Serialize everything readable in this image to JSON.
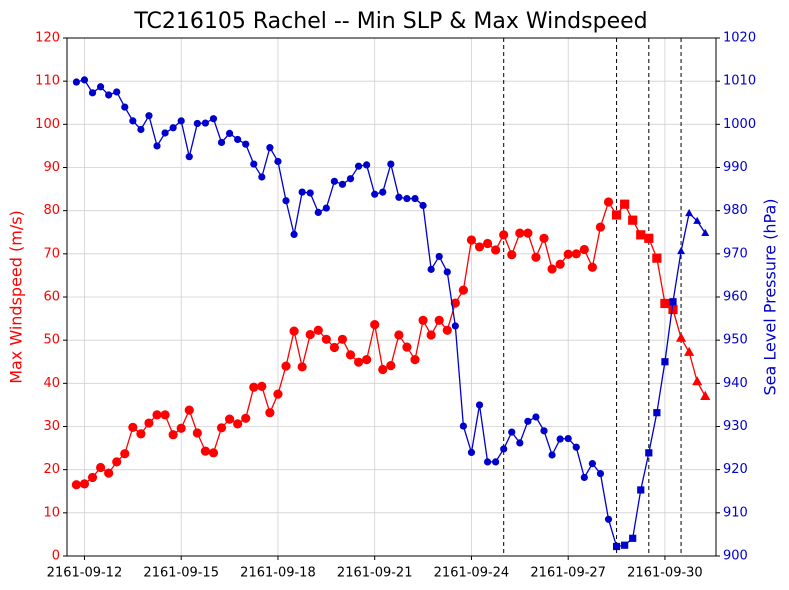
{
  "chart_data": {
    "type": "line",
    "title": "TC216105 Rachel -- Min SLP & Max Windspeed",
    "y_label": "Max Windspeed (m/s)",
    "y2_label": "Sea Level Pressure (hPa)",
    "x": [
      "2161-09-11 18:00",
      "2161-09-12 00:00",
      "2161-09-12 06:00",
      "2161-09-12 12:00",
      "2161-09-12 18:00",
      "2161-09-13 00:00",
      "2161-09-13 06:00",
      "2161-09-13 12:00",
      "2161-09-13 18:00",
      "2161-09-14 00:00",
      "2161-09-14 06:00",
      "2161-09-14 12:00",
      "2161-09-14 18:00",
      "2161-09-15 00:00",
      "2161-09-15 06:00",
      "2161-09-15 12:00",
      "2161-09-15 18:00",
      "2161-09-16 00:00",
      "2161-09-16 06:00",
      "2161-09-16 12:00",
      "2161-09-16 18:00",
      "2161-09-17 00:00",
      "2161-09-17 06:00",
      "2161-09-17 12:00",
      "2161-09-17 18:00",
      "2161-09-18 00:00",
      "2161-09-18 06:00",
      "2161-09-18 12:00",
      "2161-09-18 18:00",
      "2161-09-19 00:00",
      "2161-09-19 06:00",
      "2161-09-19 12:00",
      "2161-09-19 18:00",
      "2161-09-20 00:00",
      "2161-09-20 06:00",
      "2161-09-20 12:00",
      "2161-09-20 18:00",
      "2161-09-21 00:00",
      "2161-09-21 06:00",
      "2161-09-21 12:00",
      "2161-09-21 18:00",
      "2161-09-22 00:00",
      "2161-09-22 06:00",
      "2161-09-22 12:00",
      "2161-09-22 18:00",
      "2161-09-23 00:00",
      "2161-09-23 06:00",
      "2161-09-23 12:00",
      "2161-09-23 18:00",
      "2161-09-24 00:00",
      "2161-09-24 06:00",
      "2161-09-24 12:00",
      "2161-09-24 18:00",
      "2161-09-25 00:00",
      "2161-09-25 06:00",
      "2161-09-25 12:00",
      "2161-09-25 18:00",
      "2161-09-26 00:00",
      "2161-09-26 06:00",
      "2161-09-26 12:00",
      "2161-09-26 18:00",
      "2161-09-27 00:00",
      "2161-09-27 06:00",
      "2161-09-27 12:00",
      "2161-09-27 18:00",
      "2161-09-28 00:00",
      "2161-09-28 06:00",
      "2161-09-28 12:00",
      "2161-09-28 18:00",
      "2161-09-29 00:00",
      "2161-09-29 06:00",
      "2161-09-29 12:00",
      "2161-09-29 18:00",
      "2161-09-30 00:00",
      "2161-09-30 06:00",
      "2161-09-30 12:00",
      "2161-09-30 18:00",
      "2161-10-01 00:00",
      "2161-10-01 06:00"
    ],
    "series": [
      {
        "color": "#ff0000",
        "axis": "y",
        "values": [
          16.5,
          16.7,
          18.2,
          20.5,
          19.2,
          21.8,
          23.7,
          29.8,
          28.3,
          30.8,
          32.7,
          32.7,
          28.1,
          29.6,
          33.8,
          28.5,
          24.3,
          23.9,
          29.7,
          31.7,
          30.6,
          31.9,
          39.1,
          39.3,
          33.2,
          37.5,
          44.0,
          52.1,
          43.8,
          51.3,
          52.3,
          50.2,
          48.3,
          50.2,
          46.6,
          44.9,
          45.5,
          53.6,
          43.2,
          44.1,
          51.2,
          48.4,
          45.5,
          54.6,
          51.2,
          54.6,
          52.3,
          58.6,
          61.6,
          73.2,
          71.6,
          72.4,
          70.9,
          74.4,
          69.8,
          74.8,
          74.8,
          69.2,
          73.6,
          66.5,
          67.6,
          69.9,
          70.0,
          71.0,
          66.9,
          76.2,
          82.0,
          79.0,
          81.5,
          77.8,
          74.4,
          73.6,
          69.0,
          58.5,
          57.1,
          50.5,
          47.2,
          40.4,
          37.0
        ]
      },
      {
        "color": "#0000cc",
        "axis": "y2",
        "values": [
          1009.8,
          1010.3,
          1007.3,
          1008.7,
          1006.8,
          1007.5,
          1004.0,
          1000.8,
          998.8,
          1002.0,
          995.0,
          998.0,
          999.2,
          1000.8,
          992.5,
          1000.2,
          1000.3,
          1001.3,
          995.8,
          997.9,
          996.5,
          995.4,
          990.8,
          987.8,
          994.6,
          991.4,
          982.3,
          974.5,
          984.3,
          984.1,
          979.6,
          980.6,
          986.8,
          986.1,
          987.4,
          990.3,
          990.6,
          983.8,
          984.3,
          990.8,
          983.1,
          982.8,
          982.8,
          981.2,
          966.4,
          969.4,
          965.8,
          953.3,
          930.1,
          924.0,
          935.0,
          921.8,
          921.8,
          924.8,
          928.7,
          926.2,
          931.2,
          932.2,
          929.0,
          923.4,
          927.1,
          927.2,
          925.2,
          918.2,
          921.4,
          919.1,
          908.5,
          902.2,
          902.5,
          904.1,
          915.3,
          923.9,
          933.2,
          945.0,
          958.9,
          970.6,
          979.4,
          977.6,
          974.8
        ]
      }
    ],
    "marker_segments": [
      {
        "start": "2161-09-11 18:00",
        "marker": "circle"
      },
      {
        "start": "2161-09-28 12:00",
        "marker": "square"
      },
      {
        "start": "2161-09-30 12:00",
        "marker": "triangle"
      }
    ],
    "vlines": [
      "2161-09-25 00:00",
      "2161-09-28 12:00",
      "2161-09-29 12:00",
      "2161-09-30 12:00"
    ],
    "xlim": [
      "2161-09-11 11:00",
      "2161-10-01 14:00"
    ],
    "xticks": [
      "2161-09-12",
      "2161-09-15",
      "2161-09-18",
      "2161-09-21",
      "2161-09-24",
      "2161-09-27",
      "2161-09-30"
    ],
    "ylim": [
      0,
      120
    ],
    "yticks": [
      0,
      10,
      20,
      30,
      40,
      50,
      60,
      70,
      80,
      90,
      100,
      110,
      120
    ],
    "y2lim": [
      900,
      1020
    ],
    "y2ticks": [
      900,
      910,
      920,
      930,
      940,
      950,
      960,
      970,
      980,
      990,
      1000,
      1010,
      1020
    ],
    "grid": true
  }
}
